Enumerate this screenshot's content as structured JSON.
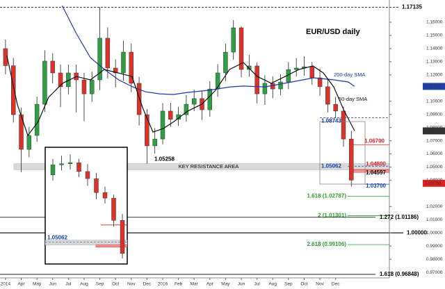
{
  "chart_data": {
    "type": "candlestick",
    "title": "EUR/USD daily",
    "xlim": [
      -0.35,
      24.42
    ],
    "ylim": [
      0.9658,
      1.1769
    ],
    "xticks": [
      {
        "value": 0,
        "label": "2014"
      },
      {
        "value": 1,
        "label": "Apr"
      },
      {
        "value": 2,
        "label": "May"
      },
      {
        "value": 3,
        "label": "Jun"
      },
      {
        "value": 4,
        "label": "Jul"
      },
      {
        "value": 5,
        "label": "Aug"
      },
      {
        "value": 6,
        "label": "Sep"
      },
      {
        "value": 7,
        "label": "Oct"
      },
      {
        "value": 8,
        "label": "Nov"
      },
      {
        "value": 9,
        "label": "Dec"
      },
      {
        "value": 10,
        "label": "2016"
      },
      {
        "value": 11,
        "label": "Feb"
      },
      {
        "value": 12,
        "label": "Mar"
      },
      {
        "value": 13,
        "label": "Apr"
      },
      {
        "value": 14,
        "label": "May"
      },
      {
        "value": 15,
        "label": "Jun"
      },
      {
        "value": 16,
        "label": "Jul"
      },
      {
        "value": 17,
        "label": "Aug"
      },
      {
        "value": 18,
        "label": "Sep"
      },
      {
        "value": 19,
        "label": "Oct"
      },
      {
        "value": 20,
        "label": "Nov"
      },
      {
        "value": 21,
        "label": "Dec"
      }
    ],
    "yticks": [
      {
        "value": 0.97,
        "label": "0.97000"
      },
      {
        "value": 0.98,
        "label": "0.98000"
      },
      {
        "value": 0.99,
        "label": "0.99000"
      },
      {
        "value": 1,
        "label": "1.00000"
      },
      {
        "value": 1.01,
        "label": "1.01000"
      },
      {
        "value": 1.02,
        "label": "1.02000"
      },
      {
        "value": 1.04,
        "label": "1.04000"
      },
      {
        "value": 1.05,
        "label": "1.05000"
      },
      {
        "value": 1.06,
        "label": "1.06000"
      },
      {
        "value": 1.07,
        "label": "1.07000"
      },
      {
        "value": 1.08,
        "label": "1.08000"
      },
      {
        "value": 1.09,
        "label": "1.09000"
      },
      {
        "value": 1.1,
        "label": "1.10000"
      },
      {
        "value": 1.12,
        "label": "1.12000"
      },
      {
        "value": 1.13,
        "label": "1.13000"
      },
      {
        "value": 1.14,
        "label": "1.14000"
      },
      {
        "value": 1.15,
        "label": "1.15000"
      },
      {
        "value": 1.16,
        "label": "1.16000"
      }
    ],
    "grid": false,
    "up_color": "#2f9e44",
    "down_color": "#d9342b",
    "candles": {
      "x": [
        0,
        0.5,
        1,
        1.5,
        2,
        2.5,
        3,
        3.5,
        4,
        4.5,
        5,
        5.5,
        6,
        6.5,
        7,
        7.5,
        8,
        8.5,
        9,
        9.5,
        10,
        10.5,
        11,
        11.5,
        12,
        12.5,
        13,
        13.5,
        14,
        14.5,
        15,
        15.5,
        16,
        16.5,
        17,
        17.5,
        18,
        18.5,
        19,
        19.5,
        20,
        20.5,
        21,
        21.5,
        22
      ],
      "open": [
        1.14,
        1.127,
        1.0898,
        1.0634,
        1.074,
        1.0977,
        1.1305,
        1.1215,
        1.111,
        1.1215,
        1.1162,
        1.1056,
        1.1162,
        1.1479,
        1.1252,
        1.1215,
        1.1373,
        1.1136,
        1.0898,
        1.0661,
        1.0713,
        1.0925,
        1.0862,
        1.0898,
        1.0977,
        1.102,
        1.0935,
        1.1093,
        1.1215,
        1.1373,
        1.1558,
        1.1241,
        1.1268,
        1.1056,
        1.1136,
        1.1093,
        1.1146,
        1.1241,
        1.1252,
        1.1262,
        1.1178,
        1.111,
        1.0977,
        1.0925,
        1.0713
      ],
      "high": [
        1.1468,
        1.133,
        1.0952,
        1.0805,
        1.1035,
        1.1387,
        1.1365,
        1.1278,
        1.1278,
        1.1278,
        1.1215,
        1.1225,
        1.1714,
        1.1561,
        1.1319,
        1.146,
        1.1438,
        1.1186,
        1.0942,
        1.0796,
        1.0985,
        1.0988,
        1.0958,
        1.1046,
        1.1087,
        1.1075,
        1.1152,
        1.1282,
        1.1438,
        1.1616,
        1.1569,
        1.1352,
        1.1295,
        1.1198,
        1.1188,
        1.1205,
        1.1298,
        1.1328,
        1.1342,
        1.1298,
        1.1248,
        1.1165,
        1.1034,
        1.0958,
        1.0775
      ],
      "low": [
        1.1205,
        1.0838,
        1.0462,
        1.0575,
        1.0692,
        1.0918,
        1.1135,
        1.0955,
        1.1052,
        1.0915,
        1.0848,
        1.0995,
        1.1085,
        1.1172,
        1.1105,
        1.1155,
        1.1068,
        1.0815,
        1.0526,
        1.0602,
        1.0672,
        1.0805,
        1.0812,
        1.0845,
        1.0925,
        1.0858,
        1.0882,
        1.1035,
        1.1152,
        1.1315,
        1.1182,
        1.1185,
        1.0985,
        1.0972,
        1.1022,
        1.1045,
        1.1092,
        1.1188,
        1.1195,
        1.1125,
        1.1042,
        1.0915,
        1.0874,
        1.0654,
        1.0352
      ],
      "close": [
        1.127,
        1.0898,
        1.0634,
        1.074,
        1.0977,
        1.1305,
        1.1215,
        1.111,
        1.1215,
        1.1162,
        1.1056,
        1.1162,
        1.1479,
        1.1252,
        1.1215,
        1.1373,
        1.1136,
        1.0898,
        1.0661,
        1.0713,
        1.0925,
        1.0862,
        1.0898,
        1.0977,
        1.102,
        1.0935,
        1.1093,
        1.1215,
        1.1373,
        1.1558,
        1.1241,
        1.1268,
        1.1056,
        1.1136,
        1.1093,
        1.1146,
        1.1241,
        1.1252,
        1.1262,
        1.1178,
        1.111,
        1.0977,
        1.0925,
        1.0713,
        1.04
      ]
    },
    "series": [
      {
        "name": "200-day SMA",
        "color": "#2233aa",
        "x": [
          3.6,
          4.5,
          5.4,
          6.3,
          7.2,
          8.1,
          8.9,
          9.8,
          10.7,
          11.6,
          12.9,
          14.3,
          15.1,
          16.5,
          18.2,
          19.6,
          20.9,
          21.8,
          22.2
        ],
        "values": [
          1.1727,
          1.1516,
          1.1331,
          1.1241,
          1.1162,
          1.1109,
          1.1072,
          1.1056,
          1.1051,
          1.1067,
          1.1083,
          1.1109,
          1.1115,
          1.1109,
          1.1146,
          1.1178,
          1.1162,
          1.1146,
          1.1113
        ]
      },
      {
        "name": "50-day SMA",
        "color": "#111111",
        "x": [
          0.09,
          0.75,
          1.42,
          2.08,
          2.74,
          3.63,
          4.51,
          5.4,
          6.28,
          7.17,
          8.05,
          8.72,
          9.38,
          10.04,
          10.71,
          11.59,
          12.48,
          13.36,
          14.25,
          15.13,
          16.02,
          16.9,
          17.79,
          18.67,
          19.56,
          20.22,
          20.88,
          21.55,
          22.21
        ],
        "values": [
          1.1347,
          1.0977,
          1.074,
          1.0845,
          1.103,
          1.1136,
          1.1188,
          1.1162,
          1.1241,
          1.1215,
          1.1188,
          1.0951,
          1.0766,
          1.0793,
          1.0845,
          1.0925,
          1.0977,
          1.1083,
          1.1241,
          1.1294,
          1.1188,
          1.1136,
          1.1188,
          1.1241,
          1.1268,
          1.1215,
          1.1109,
          1.0925,
          1.0775
        ]
      }
    ],
    "levels": [
      {
        "value": 1.17135,
        "label": "1.17135",
        "color": "#000000",
        "dashed": true
      },
      {
        "value": 1.08743,
        "label": "1.08743",
        "color": "#1a3fa8",
        "dashed": true
      },
      {
        "value": 1.067,
        "label": "1.06700",
        "color": "#e02020",
        "dashed": false
      },
      {
        "value": 1.05258,
        "label": "1.05258",
        "color": "#000000",
        "dashed": false
      },
      {
        "value": 1.05062,
        "label": "1.05062",
        "color": "#1a3fa8",
        "dashed": true
      },
      {
        "value": 1.048,
        "label": "1.04800",
        "color": "#e02020",
        "dashed": false
      },
      {
        "value": 1.04597,
        "label": "1.04597",
        "color": "#000000",
        "dashed": false
      },
      {
        "value": 1.037,
        "label": "1.03700",
        "color": "#1a3fa8",
        "dashed": false
      },
      {
        "value": 1.02787,
        "label": "1.618 (1.02787)",
        "color": "#2e9e2e",
        "dashed": false
      },
      {
        "value": 1.01301,
        "label": "2 (1.01301)",
        "color": "#2e9e2e",
        "dashed": false
      },
      {
        "value": 1.01186,
        "label": "1.272 (1.01186)",
        "color": "#000000",
        "dashed": false
      },
      {
        "value": 1,
        "label": "1.00000",
        "color": "#000000",
        "dashed": false
      },
      {
        "value": 0.99106,
        "label": "2.618 (0.99106)",
        "color": "#2e9e2e",
        "dashed": false
      },
      {
        "value": 0.96848,
        "label": "1.618 (0.96848)",
        "color": "#000000",
        "dashed": false
      }
    ],
    "resistance_area": {
      "label": "KEY RESISTANCE AREA",
      "color": "#d9d9d9"
    },
    "zone_color": "#f2a0a0",
    "price_tags": [
      {
        "value": 1.11126,
        "label": "1.11126",
        "color": "#1a3fa8"
      },
      {
        "value": 1.07746,
        "label": "1.07746",
        "color": "#333333"
      },
      {
        "value": 1.03768,
        "label": "1.03768",
        "color": "#e02020"
      }
    ]
  }
}
